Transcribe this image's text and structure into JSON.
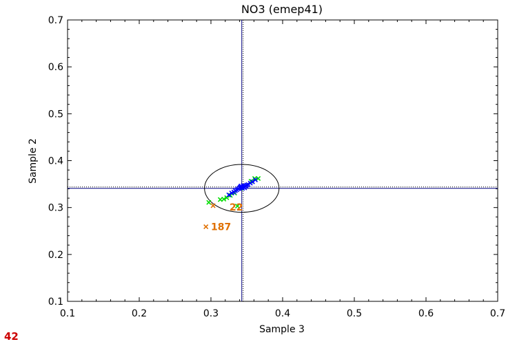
{
  "chart_data": {
    "type": "scatter",
    "title": "NO3 (emep41)",
    "xlabel": "Sample 3",
    "ylabel": "Sample 2",
    "xlim": [
      0.1,
      0.7
    ],
    "ylim": [
      0.1,
      0.7
    ],
    "xticks": [
      "0.1",
      "0.2",
      "0.3",
      "0.4",
      "0.5",
      "0.6",
      "0.7"
    ],
    "yticks": [
      "0.1",
      "0.2",
      "0.3",
      "0.4",
      "0.5",
      "0.6",
      "0.7"
    ],
    "grid": false,
    "reference_lines": {
      "x": 0.343,
      "y": 0.341
    },
    "ellipse": {
      "cx": 0.343,
      "cy": 0.341,
      "rx": 0.052,
      "ry": 0.051
    },
    "series": [
      {
        "color": "#00dd00",
        "marker": "x",
        "points": [
          [
            0.297,
            0.311
          ],
          [
            0.313,
            0.317
          ],
          [
            0.318,
            0.318
          ],
          [
            0.322,
            0.321
          ],
          [
            0.327,
            0.326
          ],
          [
            0.333,
            0.331
          ],
          [
            0.337,
            0.303
          ],
          [
            0.342,
            0.341
          ],
          [
            0.356,
            0.356
          ],
          [
            0.361,
            0.362
          ],
          [
            0.366,
            0.362
          ]
        ]
      },
      {
        "color": "#0000ff",
        "marker": "x",
        "points": [
          [
            0.325,
            0.327
          ],
          [
            0.329,
            0.331
          ],
          [
            0.332,
            0.333
          ],
          [
            0.334,
            0.336
          ],
          [
            0.336,
            0.338
          ],
          [
            0.338,
            0.34
          ],
          [
            0.34,
            0.342
          ],
          [
            0.341,
            0.344
          ],
          [
            0.342,
            0.346
          ],
          [
            0.343,
            0.343
          ],
          [
            0.344,
            0.341
          ],
          [
            0.345,
            0.347
          ],
          [
            0.346,
            0.344
          ],
          [
            0.347,
            0.342
          ],
          [
            0.348,
            0.346
          ],
          [
            0.349,
            0.345
          ],
          [
            0.35,
            0.348
          ],
          [
            0.352,
            0.349
          ],
          [
            0.355,
            0.352
          ],
          [
            0.358,
            0.355
          ],
          [
            0.362,
            0.359
          ]
        ]
      },
      {
        "color": "#e07000",
        "marker": "x",
        "points": [
          [
            0.303,
            0.304
          ],
          [
            0.293,
            0.259
          ]
        ],
        "labels": [
          {
            "text": "22",
            "x": 0.326,
            "y": 0.301
          },
          {
            "text": "187",
            "x": 0.3,
            "y": 0.259
          }
        ]
      }
    ]
  },
  "page": {
    "corner_label": "42"
  }
}
